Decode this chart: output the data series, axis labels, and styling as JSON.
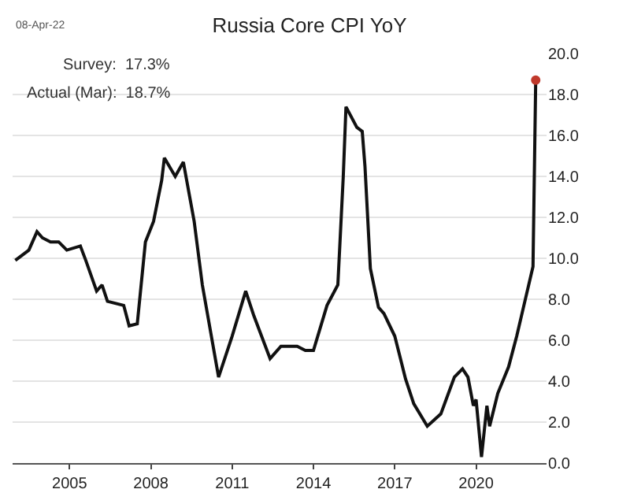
{
  "chart_data": {
    "type": "line",
    "title": "Russia Core CPI YoY",
    "annotations": [
      "08-Apr-22",
      "Survey:  17.3%",
      "Actual (Mar):  18.7%"
    ],
    "xlim": [
      2002.9,
      2022.6
    ],
    "xticks": [
      2005,
      2008,
      2011,
      2014,
      2017,
      2020
    ],
    "ylim": [
      0,
      20
    ],
    "yticks": [
      {
        "value": 0,
        "label": "0.0"
      },
      {
        "value": 2,
        "label": "2.0"
      },
      {
        "value": 4,
        "label": "4.0"
      },
      {
        "value": 6,
        "label": "6.0"
      },
      {
        "value": 8,
        "label": "8.0"
      },
      {
        "value": 10,
        "label": "10.0"
      },
      {
        "value": 12,
        "label": "12.0"
      },
      {
        "value": 14,
        "label": "14.0"
      },
      {
        "value": 16,
        "label": "16.0"
      },
      {
        "value": 18,
        "label": "18.0"
      },
      {
        "value": 20,
        "label": "20.0"
      }
    ],
    "grid": "y",
    "series": [
      {
        "color": "#111111",
        "marker": "none",
        "x": [
          2003.0,
          2003.5,
          2003.8,
          2004.0,
          2004.3,
          2004.6,
          2004.9,
          2005.4,
          2005.6,
          2006.0,
          2006.2,
          2006.4,
          2007.0,
          2007.2,
          2007.5,
          2007.8,
          2008.1,
          2008.4,
          2008.5,
          2008.9,
          2009.2,
          2009.6,
          2009.9,
          2010.5,
          2011.0,
          2011.5,
          2011.8,
          2012.4,
          2012.8,
          2013.4,
          2013.7,
          2014.0,
          2014.5,
          2014.9,
          2015.1,
          2015.2,
          2015.6,
          2015.8,
          2015.9,
          2016.1,
          2016.4,
          2016.6,
          2017.0,
          2017.4,
          2017.7,
          2018.2,
          2018.7,
          2019.2,
          2019.5,
          2019.7,
          2019.9,
          2020.0,
          2020.2,
          2020.4,
          2020.5,
          2020.8,
          2021.2,
          2021.5,
          2021.8,
          2022.1,
          2022.2
        ],
        "values": [
          9.9,
          10.4,
          11.3,
          11.0,
          10.8,
          10.8,
          10.4,
          10.6,
          9.9,
          8.4,
          8.7,
          7.9,
          7.7,
          6.7,
          6.8,
          10.8,
          11.8,
          13.8,
          14.9,
          14.0,
          14.7,
          11.8,
          8.7,
          4.2,
          6.2,
          8.4,
          7.2,
          5.1,
          5.7,
          5.7,
          5.5,
          5.5,
          7.7,
          8.7,
          14.0,
          17.4,
          16.4,
          16.2,
          14.5,
          9.5,
          7.6,
          7.3,
          6.2,
          4.1,
          2.9,
          1.8,
          2.4,
          4.2,
          4.6,
          4.2,
          2.8,
          3.1,
          0.3,
          2.8,
          1.8,
          3.4,
          4.7,
          6.2,
          7.9,
          9.6,
          18.7
        ]
      },
      {
        "type": "scatter",
        "color": "#c0392b",
        "marker": "circle",
        "x": [
          2022.2
        ],
        "values": [
          18.7
        ]
      }
    ]
  }
}
